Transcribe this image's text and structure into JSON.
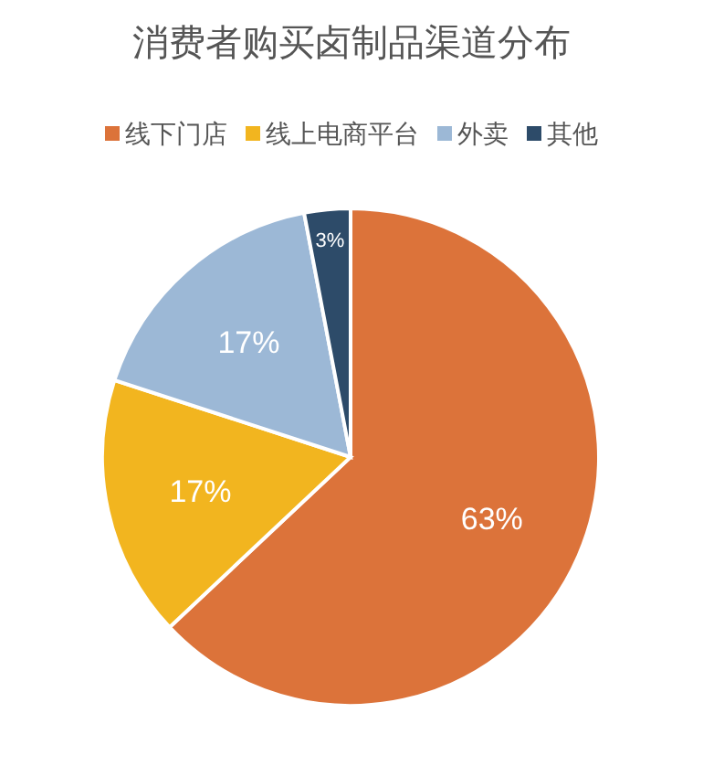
{
  "chart_data": {
    "type": "pie",
    "title": "消费者购买卤制品渠道分布",
    "categories": [
      "线下门店",
      "线上电商平台",
      "外卖",
      "其他"
    ],
    "values": [
      63,
      17,
      17,
      3
    ],
    "colors": [
      "#dc733a",
      "#f2b51f",
      "#9cb8d6",
      "#2d4b69"
    ],
    "value_labels": [
      "63%",
      "17%",
      "17%",
      "3%"
    ],
    "legend": "top"
  }
}
